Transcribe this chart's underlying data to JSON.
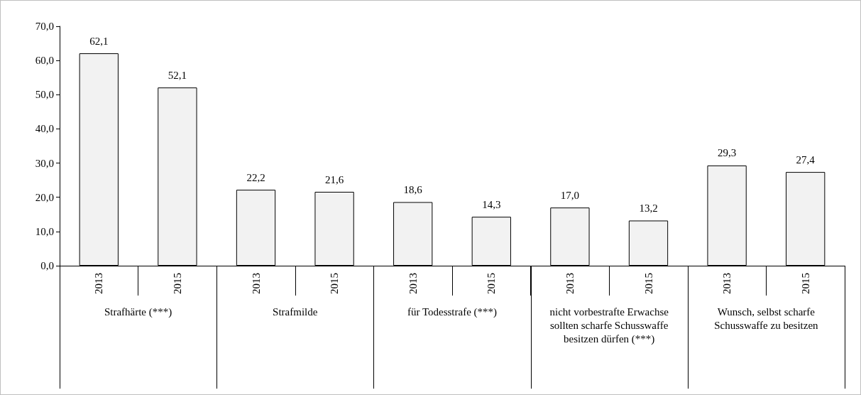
{
  "chart_data": {
    "type": "bar",
    "categories": [
      "2013",
      "2015",
      "2013",
      "2015",
      "2013",
      "2015",
      "2013",
      "2015",
      "2013",
      "2015"
    ],
    "values": [
      62.1,
      52.1,
      22.2,
      21.6,
      18.6,
      14.3,
      17.0,
      13.2,
      29.3,
      27.4
    ],
    "value_labels": [
      "62,1",
      "52,1",
      "22,2",
      "21,6",
      "18,6",
      "14,3",
      "17,0",
      "13,2",
      "29,3",
      "27,4"
    ],
    "color": "#f2f2f2",
    "ylim": [
      0,
      70
    ],
    "yticks": [
      {
        "value": 0,
        "label": "0,0"
      },
      {
        "value": 10,
        "label": "10,0"
      },
      {
        "value": 20,
        "label": "20,0"
      },
      {
        "value": 30,
        "label": "30,0"
      },
      {
        "value": 40,
        "label": "40,0"
      },
      {
        "value": 50,
        "label": "50,0"
      },
      {
        "value": 60,
        "label": "60,0"
      },
      {
        "value": 70,
        "label": "70,0"
      }
    ],
    "annotations": [
      "Strafhärte (***)",
      "Strafmilde",
      "für Todesstrafe (***)",
      "nicht vorbestrafte Erwachse sollten scharfe Schusswaffe besitzen dürfen (***)",
      "Wunsch, selbst scharfe Schusswaffe zu besitzen"
    ],
    "grid": false
  }
}
